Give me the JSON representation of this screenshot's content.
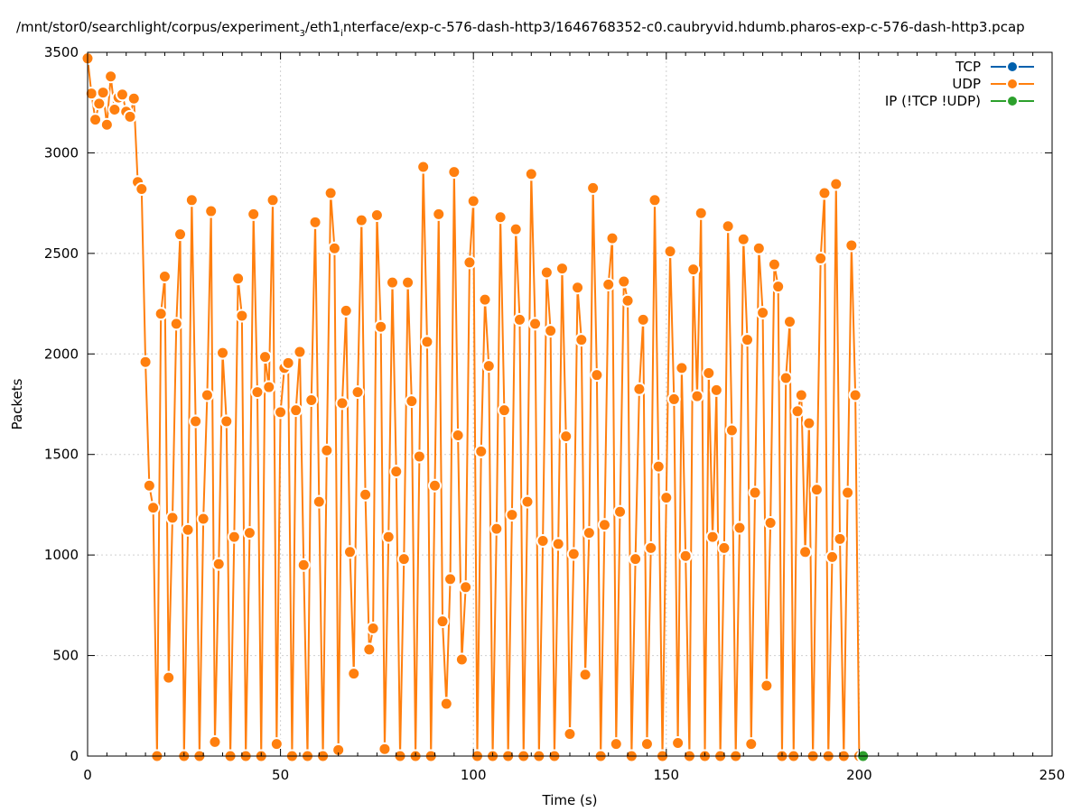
{
  "chart_data": {
    "type": "line",
    "title_parts": [
      "/mnt/stor0/searchlight/corpus/experiment",
      "3",
      "/eth1",
      "i",
      "nterface/exp-c-576-dash-http3/1646768352-c0.caubryvid.hdumb.pharos-exp-c-576-dash-http3.pcap"
    ],
    "xlabel": "Time (s)",
    "ylabel": "Packets",
    "xlim": [
      0,
      250
    ],
    "ylim": [
      0,
      3500
    ],
    "xticks": [
      0,
      50,
      100,
      150,
      200,
      250
    ],
    "yticks": [
      0,
      500,
      1000,
      1500,
      2000,
      2500,
      3000,
      3500
    ],
    "grid": true,
    "legend_position": "top-right",
    "series": [
      {
        "name": "TCP",
        "color": "#0060ad",
        "x": [],
        "y": []
      },
      {
        "name": "UDP",
        "color": "#ff7f0e",
        "x": [
          0,
          1,
          2,
          3,
          4,
          5,
          6,
          7,
          8,
          9,
          10,
          11,
          12,
          13,
          14,
          15,
          16,
          17,
          18,
          19,
          20,
          21,
          22,
          23,
          24,
          25,
          26,
          27,
          28,
          29,
          30,
          31,
          32,
          33,
          34,
          35,
          36,
          37,
          38,
          39,
          40,
          41,
          42,
          43,
          44,
          45,
          46,
          47,
          48,
          49,
          50,
          51,
          52,
          53,
          54,
          55,
          56,
          57,
          58,
          59,
          60,
          61,
          62,
          63,
          64,
          65,
          66,
          67,
          68,
          69,
          70,
          71,
          72,
          73,
          74,
          75,
          76,
          77,
          78,
          79,
          80,
          81,
          82,
          83,
          84,
          85,
          86,
          87,
          88,
          89,
          90,
          91,
          92,
          93,
          94,
          95,
          96,
          97,
          98,
          99,
          100,
          101,
          102,
          103,
          104,
          105,
          106,
          107,
          108,
          109,
          110,
          111,
          112,
          113,
          114,
          115,
          116,
          117,
          118,
          119,
          120,
          121,
          122,
          123,
          124,
          125,
          126,
          127,
          128,
          129,
          130,
          131,
          132,
          133,
          134,
          135,
          136,
          137,
          138,
          139,
          140,
          141,
          142,
          143,
          144,
          145,
          146,
          147,
          148,
          149,
          150,
          151,
          152,
          153,
          154,
          155,
          156,
          157,
          158,
          159,
          160,
          161,
          162,
          163,
          164,
          165,
          166,
          167,
          168,
          169,
          170,
          171,
          172,
          173,
          174,
          175,
          176,
          177,
          178,
          179,
          180,
          181,
          182,
          183,
          184,
          185,
          186,
          187,
          188,
          189,
          190,
          191,
          192,
          193,
          194,
          195,
          196,
          197,
          198,
          199,
          200
        ],
        "y": [
          3470,
          3295,
          3165,
          3245,
          3300,
          3140,
          3380,
          3215,
          3275,
          3290,
          3205,
          3180,
          3270,
          2855,
          2820,
          1960,
          1345,
          1235,
          0,
          2200,
          2385,
          390,
          1185,
          2150,
          2595,
          0,
          1125,
          2765,
          1665,
          0,
          1180,
          1795,
          2710,
          70,
          955,
          2005,
          1665,
          0,
          1090,
          2375,
          2190,
          0,
          1110,
          2695,
          1810,
          0,
          1985,
          1835,
          2765,
          60,
          1710,
          1930,
          1955,
          0,
          1720,
          2010,
          950,
          0,
          1770,
          2655,
          1265,
          0,
          1520,
          2800,
          2525,
          30,
          1755,
          2215,
          1015,
          410,
          1810,
          2665,
          1300,
          530,
          635,
          2690,
          2135,
          35,
          1090,
          2355,
          1415,
          0,
          980,
          2355,
          1765,
          0,
          1490,
          2930,
          2060,
          0,
          1345,
          2695,
          670,
          260,
          880,
          2905,
          1595,
          480,
          840,
          2455,
          2760,
          0,
          1515,
          2270,
          1940,
          0,
          1130,
          2680,
          1720,
          0,
          1200,
          2620,
          2170,
          0,
          1265,
          2895,
          2150,
          0,
          1070,
          2405,
          2115,
          0,
          1055,
          2425,
          1590,
          110,
          1005,
          2330,
          2070,
          405,
          1110,
          2825,
          1895,
          0,
          1150,
          2345,
          2575,
          60,
          1215,
          2360,
          2265,
          0,
          980,
          1825,
          2170,
          60,
          1035,
          2765,
          1440,
          0,
          1285,
          2510,
          1775,
          65,
          1930,
          995,
          0,
          2420,
          1790,
          2700,
          0,
          1905,
          1090,
          1820,
          0,
          1035,
          2635,
          1620,
          0,
          1135,
          2570,
          2070,
          60,
          1310,
          2525,
          2205,
          350,
          1160,
          2445,
          2335,
          0,
          1880,
          2160,
          0,
          1715,
          1795,
          1015,
          1655,
          0,
          1325,
          2475,
          2800,
          0,
          990,
          2845,
          1080,
          0,
          1310,
          2540,
          1795,
          0
        ]
      },
      {
        "name": "IP (!TCP  !UDP)",
        "color": "#2ca02c",
        "x": [
          201
        ],
        "y": [
          0
        ]
      }
    ]
  }
}
